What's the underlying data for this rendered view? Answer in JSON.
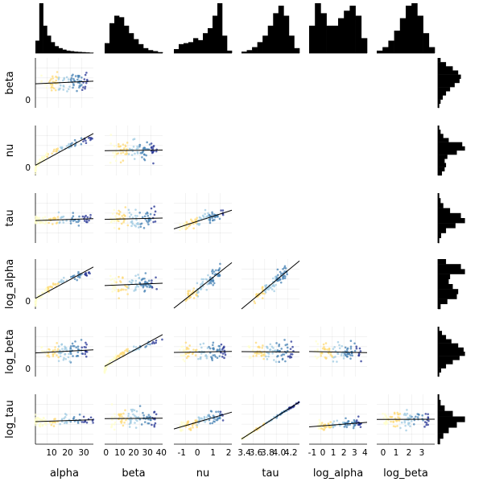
{
  "chart_data": {
    "type": "scatter",
    "title": "",
    "variables": [
      "alpha",
      "beta",
      "nu",
      "tau",
      "log_alpha",
      "log_beta",
      "log_tau"
    ],
    "x_axis_labels": [
      "alpha",
      "beta",
      "nu",
      "tau",
      "log_alpha",
      "log_beta"
    ],
    "y_axis_labels": [
      "beta",
      "nu",
      "tau",
      "log_alpha",
      "log_beta",
      "log_tau"
    ],
    "grid": true,
    "colormap": [
      "#ffffcc",
      "#fed976",
      "#9ecae1",
      "#4682b4",
      "#253494"
    ],
    "x_ticks": [
      {
        "values": [
          10,
          20,
          30
        ],
        "labels": [
          "10",
          "20",
          "30"
        ]
      },
      {
        "values": [
          0,
          10,
          20,
          30,
          40
        ],
        "labels": [
          "0",
          "10",
          "20",
          "30",
          "40"
        ]
      },
      {
        "values": [
          -1,
          0,
          1,
          2
        ],
        "labels": [
          "-1",
          "0",
          "1",
          "2"
        ]
      },
      {
        "values": [
          3.4,
          3.6,
          3.8,
          4.0,
          4.2
        ],
        "labels": [
          "3.4",
          "3.6",
          "3.8",
          "4.0",
          "4.2"
        ]
      },
      {
        "values": [
          -1,
          0,
          1,
          2,
          3,
          4
        ],
        "labels": [
          "-1",
          "0",
          "1",
          "2",
          "3",
          "4"
        ]
      },
      {
        "values": [
          0,
          1,
          2,
          3
        ],
        "labels": [
          "0",
          "1",
          "2",
          "3"
        ]
      }
    ],
    "y_ticks": {
      "beta": [
        "0"
      ],
      "nu": [
        "0"
      ],
      "tau": [],
      "log_alpha": [
        "0"
      ],
      "log_beta": [
        "0"
      ],
      "log_tau": []
    },
    "x_ranges": [
      [
        0,
        36
      ],
      [
        -1,
        41
      ],
      [
        -1.5,
        2.2
      ],
      [
        3.35,
        4.35
      ],
      [
        -1.3,
        4.2
      ],
      [
        -0.5,
        4.0
      ]
    ],
    "histograms": {
      "alpha": [
        0.25,
        1.0,
        0.55,
        0.35,
        0.22,
        0.14,
        0.1,
        0.07,
        0.05,
        0.04,
        0.03,
        0.025,
        0.02,
        0.015,
        0.01
      ],
      "beta": [
        0.2,
        0.6,
        0.75,
        0.72,
        0.55,
        0.4,
        0.28,
        0.18,
        0.1,
        0.06,
        0.04,
        0.02
      ],
      "nu": [
        0.08,
        0.18,
        0.2,
        0.22,
        0.3,
        0.26,
        0.4,
        0.5,
        0.75,
        1.0,
        0.35,
        0.05
      ],
      "tau": [
        0.03,
        0.06,
        0.12,
        0.22,
        0.35,
        0.55,
        0.8,
        0.95,
        0.75,
        0.35,
        0.1
      ],
      "log_alpha": [
        0.55,
        1.0,
        0.8,
        0.55,
        0.55,
        0.7,
        0.85,
        0.95,
        0.75,
        0.3
      ],
      "log_beta": [
        0.05,
        0.12,
        0.25,
        0.45,
        0.7,
        0.95,
        1.0,
        0.75,
        0.4,
        0.12
      ],
      "beta_margin": [
        0.1,
        0.3,
        0.55,
        0.75,
        0.85,
        0.8,
        0.62,
        0.45,
        0.3,
        0.18,
        0.1,
        0.05
      ],
      "nu_margin": [
        0.05,
        0.1,
        0.2,
        0.4,
        0.9,
        1.0,
        0.7,
        0.35,
        0.25,
        0.3,
        0.25,
        0.15
      ],
      "tau_margin": [
        0.05,
        0.1,
        0.2,
        0.45,
        0.85,
        1.0,
        0.65,
        0.3,
        0.12,
        0.05
      ],
      "log_alpha_margin": [
        0.3,
        0.85,
        1.0,
        0.45,
        0.4,
        0.55,
        0.75,
        0.7,
        0.35,
        0.1
      ],
      "log_beta_margin": [
        0.05,
        0.15,
        0.3,
        0.5,
        0.75,
        0.95,
        1.0,
        0.8,
        0.55,
        0.3,
        0.12,
        0.05
      ],
      "log_tau_margin": [
        0.05,
        0.1,
        0.25,
        0.55,
        1.0,
        0.7,
        0.4,
        0.2,
        0.08
      ]
    }
  }
}
